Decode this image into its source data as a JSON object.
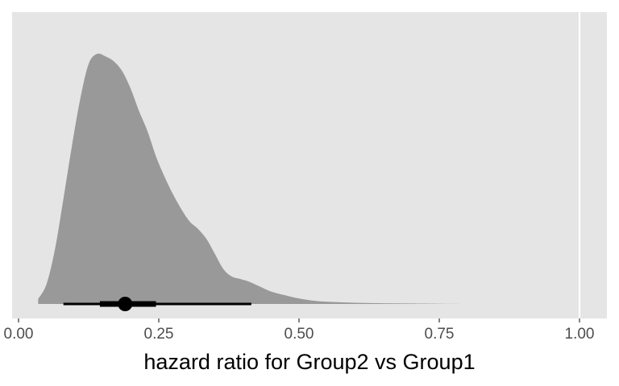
{
  "chart_data": {
    "type": "area",
    "title": "",
    "xlabel": "hazard ratio for Group2 vs Group1",
    "ylabel": "",
    "xlim": [
      -0.01,
      1.05
    ],
    "x_ticks": [
      "0.00",
      "0.25",
      "0.50",
      "0.75",
      "1.00"
    ],
    "x_tick_values": [
      0,
      0.25,
      0.5,
      0.75,
      1.0
    ],
    "grid": false,
    "legend": "none",
    "reference_line": {
      "x": 1.0
    },
    "density": {
      "x": [
        0.035,
        0.05,
        0.065,
        0.08,
        0.095,
        0.11,
        0.125,
        0.14,
        0.155,
        0.17,
        0.185,
        0.2,
        0.215,
        0.23,
        0.245,
        0.26,
        0.275,
        0.29,
        0.305,
        0.32,
        0.335,
        0.35,
        0.365,
        0.38,
        0.395,
        0.41,
        0.43,
        0.45,
        0.475,
        0.5,
        0.53,
        0.56,
        0.6,
        0.65,
        0.7,
        0.75,
        0.81
      ],
      "y": [
        0.02,
        0.08,
        0.22,
        0.42,
        0.63,
        0.82,
        0.96,
        1.0,
        0.99,
        0.97,
        0.93,
        0.86,
        0.77,
        0.69,
        0.59,
        0.51,
        0.44,
        0.38,
        0.33,
        0.3,
        0.26,
        0.2,
        0.14,
        0.11,
        0.1,
        0.09,
        0.07,
        0.05,
        0.035,
        0.022,
        0.012,
        0.008,
        0.005,
        0.003,
        0.002,
        0.001,
        0.0
      ]
    },
    "point_estimate": 0.19,
    "interval_66": [
      0.145,
      0.245
    ],
    "interval_95": [
      0.08,
      0.415
    ],
    "colors": {
      "panel": "#e5e5e5",
      "density": "#999999",
      "interval": "#000000",
      "reference_line": "#ffffff"
    }
  }
}
